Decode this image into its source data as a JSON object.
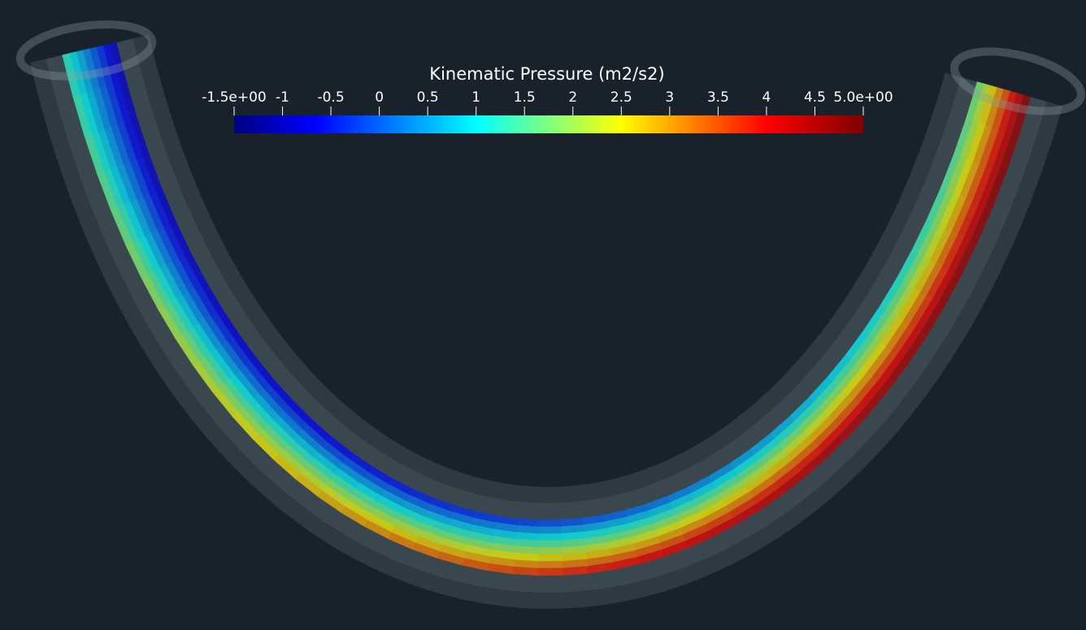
{
  "colorbar": {
    "title": "Kinematic Pressure (m2/s2)",
    "range": [
      -1.5,
      5
    ],
    "ticks": [
      {
        "value": -1.5,
        "label": "-1.5e+00"
      },
      -1,
      -0.5,
      0,
      0.5,
      1,
      1.5,
      2,
      2.5,
      3,
      3.5,
      4,
      4.5,
      {
        "value": 5,
        "label": "5.0e+00"
      }
    ]
  }
}
